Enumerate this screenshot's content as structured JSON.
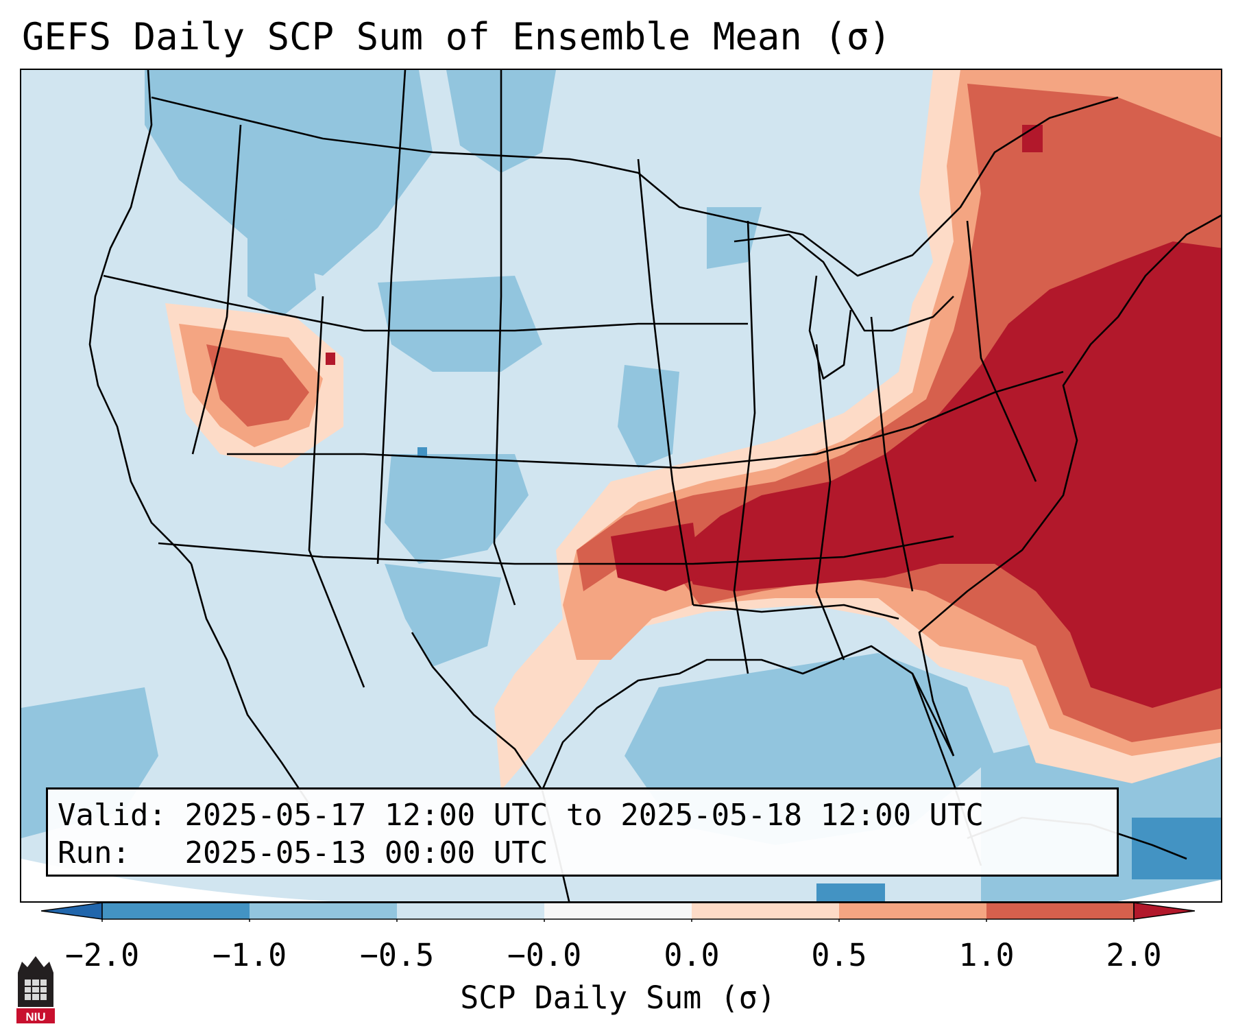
{
  "title": "GEFS Daily SCP Sum of Ensemble Mean (σ)",
  "info": {
    "valid_label": "Valid:",
    "valid_value": "2025-05-17 12:00 UTC to 2025-05-18 12:00 UTC",
    "run_label": "Run:",
    "run_value": "2025-05-13 00:00 UTC"
  },
  "colorbar": {
    "label": "SCP Daily Sum (σ)",
    "ticks": [
      "−2.0",
      "−1.0",
      "−0.5",
      "−0.0",
      "0.0",
      "0.5",
      "1.0",
      "2.0"
    ],
    "colors": [
      "#4393c3",
      "#92c5de",
      "#d1e5f0",
      "#f7f7f7",
      "#fddbc7",
      "#f4a582",
      "#d6604d"
    ],
    "under_color": "#2166ac",
    "over_color": "#b2182b"
  },
  "map": {
    "region": "Contiguous United States",
    "field": "SCP Daily Sum (σ)",
    "background_color": "#d1e5f0",
    "max_color": "#b2182b"
  },
  "logo": {
    "text": "NIU",
    "icon": "university-seal-icon"
  }
}
